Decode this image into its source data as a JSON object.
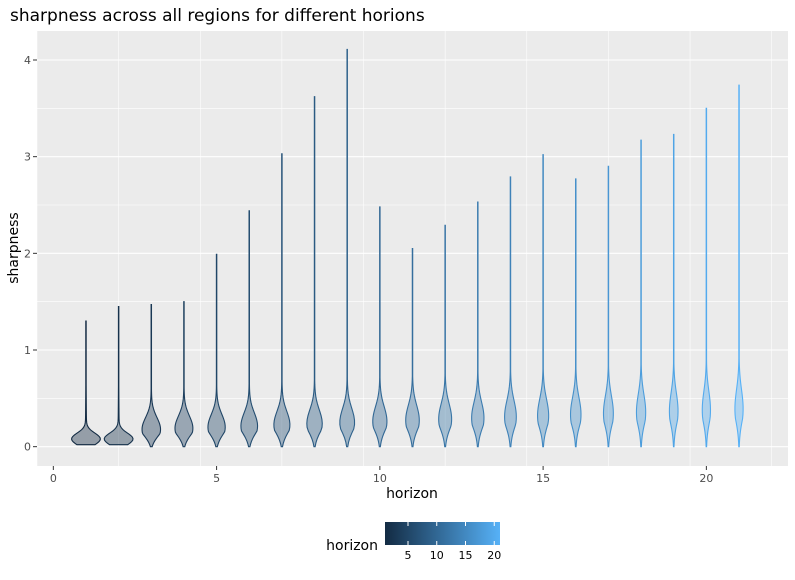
{
  "chart_data": {
    "type": "violin",
    "title": "sharpness across all regions for different horions",
    "xlabel": "horizon",
    "ylabel": "sharpness",
    "xlim": [
      -0.5,
      22.5
    ],
    "ylim": [
      -0.2,
      4.3
    ],
    "x_ticks": [
      0,
      5,
      10,
      15,
      20
    ],
    "y_ticks": [
      0,
      1,
      2,
      3,
      4
    ],
    "grid": true,
    "horizons": [
      1,
      2,
      3,
      4,
      5,
      6,
      7,
      8,
      9,
      10,
      11,
      12,
      13,
      14,
      15,
      16,
      17,
      18,
      19,
      20,
      21
    ],
    "max_values": [
      1.3,
      1.45,
      1.47,
      1.5,
      1.99,
      2.44,
      3.03,
      3.62,
      4.11,
      2.48,
      2.05,
      2.29,
      2.53,
      2.79,
      3.02,
      2.77,
      2.9,
      3.17,
      3.23,
      3.5,
      3.74
    ],
    "fill_alpha": 0.4,
    "color_low": "#132B43",
    "color_high": "#56B1F7",
    "legend": {
      "title": "horizon",
      "position": "bottom",
      "ticks": [
        5,
        10,
        15,
        20
      ],
      "range": [
        1,
        21
      ]
    }
  }
}
